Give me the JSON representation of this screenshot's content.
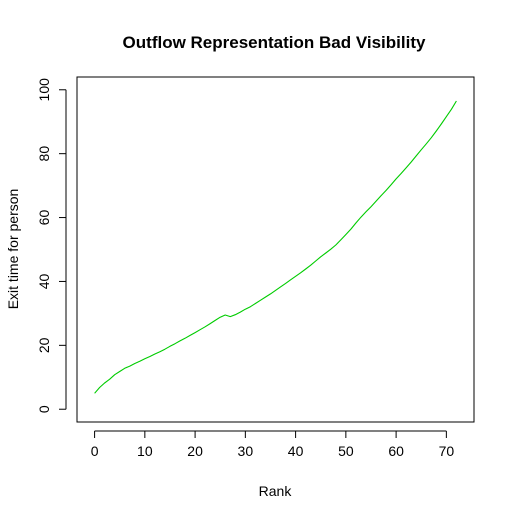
{
  "chart_data": {
    "type": "line",
    "title": "Outflow Representation Bad Visibility",
    "xlabel": "Rank",
    "ylabel": "Exit time for person",
    "xlim": [
      -3.5,
      75.5
    ],
    "ylim": [
      -4,
      104
    ],
    "xticks": [
      0,
      10,
      20,
      30,
      40,
      50,
      60,
      70
    ],
    "yticks": [
      0,
      20,
      40,
      60,
      80,
      100
    ],
    "grid": false,
    "legend": "none",
    "series": [
      {
        "color": "#00cc00",
        "x": [
          0,
          1,
          2,
          3,
          4,
          5,
          6,
          7,
          8,
          9,
          10,
          11,
          12,
          13,
          14,
          15,
          16,
          17,
          18,
          19,
          20,
          21,
          22,
          23,
          24,
          25,
          26,
          27,
          28,
          29,
          30,
          31,
          32,
          33,
          34,
          35,
          36,
          37,
          38,
          39,
          40,
          41,
          42,
          43,
          44,
          45,
          46,
          47,
          48,
          49,
          50,
          51,
          52,
          53,
          54,
          55,
          56,
          57,
          58,
          59,
          60,
          61,
          62,
          63,
          64,
          65,
          66,
          67,
          68,
          69,
          70,
          71,
          72
        ],
        "y": [
          5,
          6.8,
          8.2,
          9.4,
          10.8,
          11.8,
          12.8,
          13.5,
          14.3,
          15,
          15.8,
          16.5,
          17.3,
          18,
          18.8,
          19.7,
          20.5,
          21.4,
          22.2,
          23.1,
          24,
          24.9,
          25.8,
          26.8,
          27.8,
          28.8,
          29.5,
          29,
          29.6,
          30.4,
          31.3,
          32.1,
          33.1,
          34.1,
          35.1,
          36.1,
          37.2,
          38.3,
          39.4,
          40.5,
          41.6,
          42.7,
          43.9,
          45.1,
          46.4,
          47.7,
          48.9,
          50.1,
          51.4,
          53,
          54.7,
          56.4,
          58.3,
          60.1,
          61.8,
          63.4,
          65.1,
          66.8,
          68.5,
          70.3,
          72.1,
          73.8,
          75.6,
          77.4,
          79.3,
          81.2,
          83.1,
          85,
          87.1,
          89.3,
          91.6,
          93.9,
          96.5
        ]
      }
    ]
  }
}
